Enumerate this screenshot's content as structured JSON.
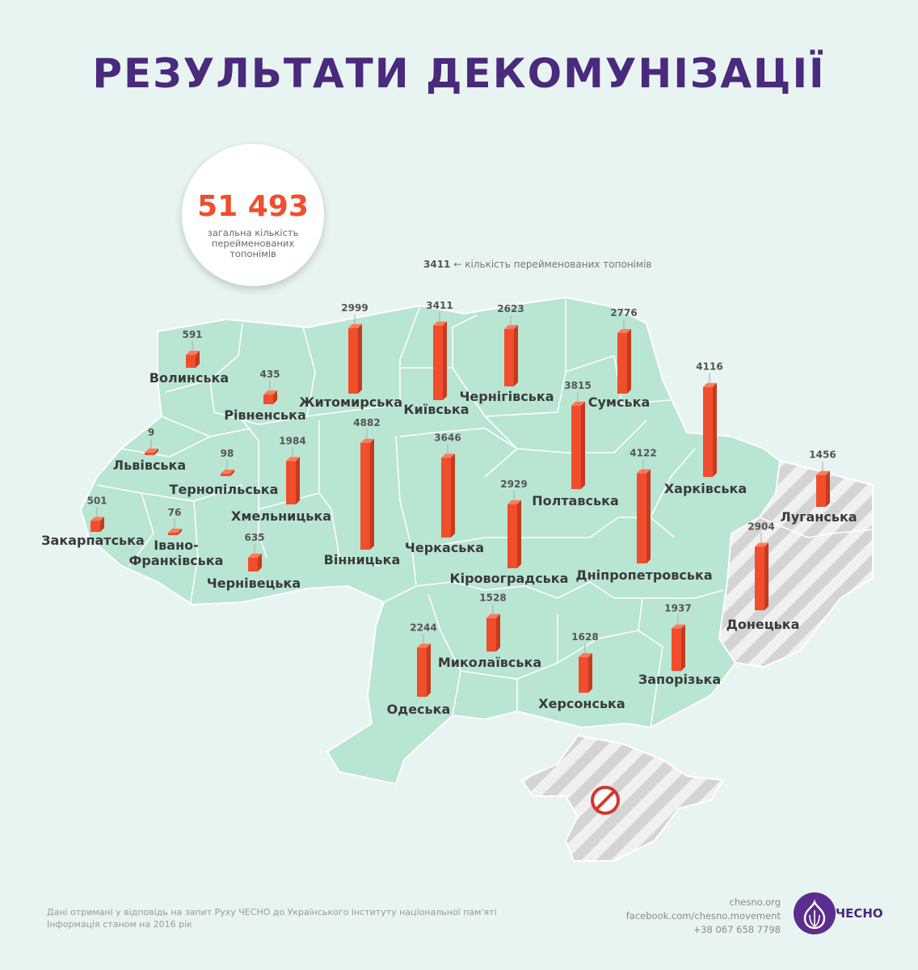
{
  "title": "РЕЗУЛЬТАТИ ДЕКОМУНІЗАЦІЇ",
  "total": {
    "value": "51 493",
    "label": "загальна кількість перейменованих топонімів"
  },
  "legend": {
    "value": "3411",
    "text": "← кількість перейменованих топонімів"
  },
  "colors": {
    "bar_front": "#f04e2d",
    "bar_side": "#c73a1f",
    "region_fill": "#b9e5d3",
    "occupied": "#d8d8d8",
    "title": "#4a2a7c"
  },
  "regions": [
    {
      "name": "Волинська",
      "value": 591
    },
    {
      "name": "Рівненська",
      "value": 435
    },
    {
      "name": "Житомирська",
      "value": 2999
    },
    {
      "name": "Київська",
      "value": 3411
    },
    {
      "name": "Чернігівська",
      "value": 2623
    },
    {
      "name": "Сумська",
      "value": 2776
    },
    {
      "name": "Харківська",
      "value": 4116
    },
    {
      "name": "Луганська",
      "value": 1456
    },
    {
      "name": "Львівська",
      "value": 9
    },
    {
      "name": "Тернопільська",
      "value": 98
    },
    {
      "name": "Хмельницька",
      "value": 1984
    },
    {
      "name": "Вінницька",
      "value": 4882
    },
    {
      "name": "Черкаська",
      "value": 3646
    },
    {
      "name": "Полтавська",
      "value": 3815
    },
    {
      "name": "Дніпропетровська",
      "value": 4122
    },
    {
      "name": "Кіровоградська",
      "value": 2929
    },
    {
      "name": "Донецька",
      "value": 2904
    },
    {
      "name": "Закарпатська",
      "value": 501
    },
    {
      "name": "Івано-Франківська",
      "value": 76
    },
    {
      "name": "Чернівецька",
      "value": 635
    },
    {
      "name": "Одеська",
      "value": 2244
    },
    {
      "name": "Миколаївська",
      "value": 1528
    },
    {
      "name": "Херсонська",
      "value": 1628
    },
    {
      "name": "Запорізька",
      "value": 1937
    }
  ],
  "footer": {
    "line1": "Дані отримані у відповідь на запит Руху ЧЕСНО до Українського інституту національної пам'яті",
    "line2": "Інформація станом на 2016 рік"
  },
  "contacts": {
    "site": "chesno.org",
    "facebook": "facebook.com/chesno.movement",
    "phone": "+38 067 658 7798"
  },
  "logo": {
    "text": "ЧЕСНО",
    "icon": "garlic-icon"
  },
  "crimea": {
    "icon": "no-entry-icon"
  }
}
